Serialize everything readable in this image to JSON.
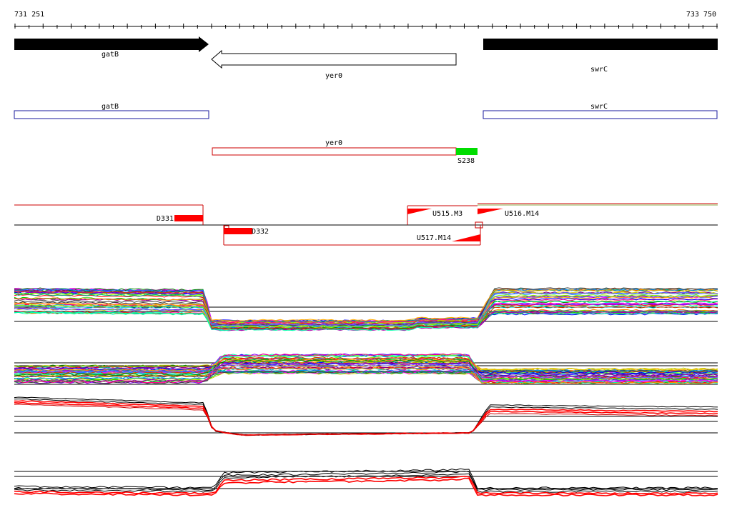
{
  "ruler": {
    "start_label": "731 251",
    "end_label": "733 750"
  },
  "genes": {
    "gatB": "gatB",
    "yer0": "yer0",
    "swrC": "swrC"
  },
  "annotations": {
    "gatB": "gatB",
    "swrC": "swrC",
    "yer0": "yer0",
    "S238": "S238"
  },
  "features": {
    "D331": "D331",
    "D332": "D332",
    "U515": "U515.M3",
    "U516": "U516.M14",
    "U517": "U517.M14"
  },
  "colors": {
    "gene_fill": "#000000",
    "annotation_blue": "#1a1a9c",
    "annotation_red": "#cc0000",
    "promoter_green": "#00dd00",
    "feature_red": "#ff0000"
  },
  "tracks": [
    {
      "name": "expression-profile-1",
      "lines": "many-colored"
    },
    {
      "name": "expression-profile-2",
      "lines": "many-colored"
    },
    {
      "name": "expression-profile-3",
      "lines": "black-red"
    },
    {
      "name": "expression-profile-4",
      "lines": "black-red"
    }
  ]
}
